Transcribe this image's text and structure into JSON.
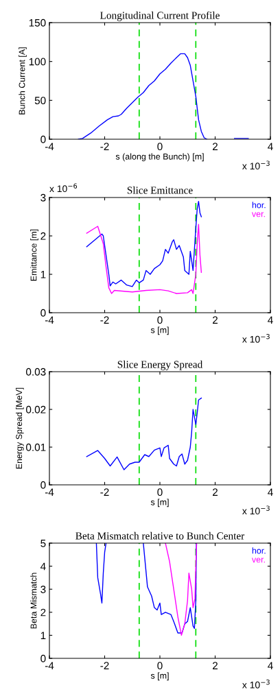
{
  "chart_data": [
    {
      "type": "line",
      "title": "Longitudinal Current Profile",
      "xlabel": "s (along the Bunch) [m]",
      "ylabel": "Bunch Current [A]",
      "xlim": [
        -4,
        4
      ],
      "xticks": [
        -4,
        -2,
        0,
        2,
        4
      ],
      "ylim": [
        0,
        150
      ],
      "yticks": [
        0,
        50,
        100,
        150
      ],
      "grid": false,
      "legend": false,
      "annotations": [
        "x 10$^{−3}$"
      ],
      "ref_lines": [
        {
          "axis": "x",
          "value": -0.75,
          "color": "#00dd00",
          "line_style": "dashed"
        },
        {
          "axis": "x",
          "value": 1.3,
          "color": "#00dd00",
          "line_style": "dashed"
        }
      ],
      "series": [
        {
          "color": "#0000ff",
          "x": [
            -2.95,
            -2.8,
            -2.5,
            -2.2,
            -1.9,
            -1.7,
            -1.5,
            -1.4,
            -1.2,
            -1.0,
            -0.8,
            -0.6,
            -0.4,
            -0.2,
            0,
            0.2,
            0.4,
            0.6,
            0.75,
            0.9,
            1.0,
            1.1,
            1.15,
            1.2,
            1.3,
            1.35,
            1.4,
            1.5,
            1.6,
            1.7,
            2.2,
            2.7,
            3.2
          ],
          "values": [
            0,
            1,
            8,
            17,
            25,
            29,
            30,
            32,
            40,
            47,
            54,
            60,
            69,
            75,
            84,
            90,
            98,
            105,
            110,
            110,
            105,
            95,
            85,
            75,
            55,
            40,
            25,
            10,
            2,
            0,
            null,
            1,
            1
          ]
        }
      ]
    },
    {
      "type": "line",
      "title": "Slice Emittance",
      "xlabel": "s [m]",
      "ylabel": "Emittance [m]",
      "xlim": [
        -4,
        4
      ],
      "xticks": [
        -4,
        -2,
        0,
        2,
        4
      ],
      "ylim": [
        0,
        3
      ],
      "yticks": [
        0,
        1,
        2,
        3
      ],
      "grid": false,
      "legend": "top right",
      "annotations": [
        "x 10$^{−3}$",
        "x 10$^{−6}$"
      ],
      "ref_lines": [
        {
          "axis": "x",
          "value": -0.75,
          "color": "#00dd00",
          "line_style": "dashed"
        },
        {
          "axis": "x",
          "value": 1.3,
          "color": "#00dd00",
          "line_style": "dashed"
        }
      ],
      "series": [
        {
          "name": "hor.",
          "color": "#0000ff",
          "x": [
            -2.65,
            -2.1,
            -2.05,
            -1.95,
            -1.85,
            -1.8,
            -1.7,
            -1.6,
            -1.4,
            -1.2,
            -1.0,
            -0.85,
            -0.75,
            -0.6,
            -0.5,
            -0.35,
            -0.2,
            0,
            0.1,
            0.2,
            0.3,
            0.45,
            0.5,
            0.6,
            0.7,
            0.85,
            0.9,
            1.05,
            1.1,
            1.2,
            1.3,
            1.35,
            1.4,
            1.45,
            1.5
          ],
          "values": [
            1.72,
            2.05,
            2.0,
            1.5,
            1.0,
            0.7,
            0.8,
            0.75,
            0.85,
            0.72,
            0.68,
            0.85,
            0.78,
            0.85,
            1.1,
            1.0,
            1.15,
            1.25,
            1.35,
            1.65,
            1.55,
            1.85,
            1.9,
            1.65,
            1.75,
            1.45,
            1.1,
            1.0,
            1.6,
            1.1,
            2.2,
            2.7,
            2.9,
            2.6,
            2.5
          ]
        },
        {
          "name": "ver.",
          "color": "#ff00ff",
          "x": [
            -2.65,
            -2.25,
            -2.05,
            -1.95,
            -1.85,
            -1.75,
            -1.65,
            -1.0,
            -0.5,
            0,
            0.3,
            0.6,
            1.0,
            1.15,
            1.2,
            1.3,
            1.35,
            1.4,
            1.45,
            1.5
          ],
          "values": [
            2.07,
            2.25,
            1.8,
            1.2,
            0.65,
            0.5,
            0.58,
            0.54,
            0.58,
            0.6,
            0.57,
            0.5,
            0.52,
            0.6,
            0.5,
            1.0,
            1.8,
            2.3,
            1.5,
            1.05
          ]
        }
      ]
    },
    {
      "type": "line",
      "title": "Slice Energy Spread",
      "xlabel": "s [m]",
      "ylabel": "Energy Spread [MeV]",
      "xlim": [
        -4,
        4
      ],
      "xticks": [
        -4,
        -2,
        0,
        2,
        4
      ],
      "ylim": [
        0,
        0.03
      ],
      "yticks": [
        0,
        0.01,
        0.02,
        0.03
      ],
      "grid": false,
      "legend": false,
      "annotations": [
        "x 10$^{−3}$"
      ],
      "ref_lines": [
        {
          "axis": "x",
          "value": -0.75,
          "color": "#00dd00",
          "line_style": "dashed"
        },
        {
          "axis": "x",
          "value": 1.3,
          "color": "#00dd00",
          "line_style": "dashed"
        }
      ],
      "series": [
        {
          "color": "#0000ff",
          "x": [
            -2.65,
            -2.25,
            -2.0,
            -1.8,
            -1.55,
            -1.3,
            -1.1,
            -0.9,
            -0.75,
            -0.55,
            -0.4,
            -0.2,
            0,
            0.05,
            0.15,
            0.3,
            0.35,
            0.5,
            0.6,
            0.7,
            0.8,
            0.9,
            1.0,
            1.1,
            1.15,
            1.2,
            1.3,
            1.35,
            1.4,
            1.5
          ],
          "values": [
            0.0075,
            0.0091,
            0.007,
            0.005,
            0.0074,
            0.004,
            0.0055,
            0.006,
            0.006,
            0.008,
            0.0075,
            0.0092,
            0.0098,
            0.0075,
            0.0098,
            0.0105,
            0.007,
            0.0055,
            0.005,
            0.0075,
            0.0082,
            0.0055,
            0.0065,
            0.01,
            0.014,
            0.02,
            0.016,
            0.019,
            0.0225,
            0.023
          ]
        }
      ]
    },
    {
      "type": "line",
      "title": "Beta Mismatch relative to Bunch Center",
      "xlabel": "s [m]",
      "ylabel": "Beta Mismatch",
      "xlim": [
        -4,
        4
      ],
      "xticks": [
        -4,
        -2,
        0,
        2,
        4
      ],
      "ylim": [
        0,
        5
      ],
      "yticks": [
        0,
        1,
        2,
        3,
        4,
        5
      ],
      "grid": false,
      "legend": "top right",
      "annotations": [
        "x 10$^{−3}$"
      ],
      "ref_lines": [
        {
          "axis": "x",
          "value": -0.75,
          "color": "#00dd00",
          "line_style": "dashed"
        },
        {
          "axis": "x",
          "value": 1.3,
          "color": "#00dd00",
          "line_style": "dashed"
        }
      ],
      "series": [
        {
          "name": "hor.",
          "color": "#0000ff",
          "x": [
            -2.3,
            -2.25,
            -2.15,
            -2.1,
            -2.05,
            -2.0,
            -1.95,
            -1.3,
            -0.6,
            -0.45,
            -0.3,
            -0.2,
            -0.1,
            0,
            0.05,
            0.2,
            0.4,
            0.5,
            0.65,
            0.8,
            0.9,
            1.0,
            1.1,
            1.2,
            1.25,
            1.3,
            1.32
          ],
          "values": [
            5,
            3.5,
            2.8,
            2.4,
            3.7,
            4.6,
            5,
            null,
            5,
            3.1,
            2.7,
            2.2,
            2.1,
            2.4,
            1.9,
            2.0,
            1.9,
            1.6,
            1.1,
            1.1,
            1.5,
            1.6,
            2.2,
            1.4,
            1.3,
            2.5,
            5
          ]
        },
        {
          "name": "ver.",
          "color": "#ff00ff",
          "x": [
            0.2,
            0.35,
            0.5,
            0.65,
            0.78,
            0.9,
            1.0,
            1.05,
            1.15,
            1.2,
            1.27,
            1.3,
            1.33
          ],
          "values": [
            5,
            4.2,
            3.0,
            1.8,
            1.0,
            1.5,
            2.5,
            3.7,
            3.0,
            2.2,
            2.6,
            4.0,
            5
          ]
        }
      ]
    }
  ]
}
